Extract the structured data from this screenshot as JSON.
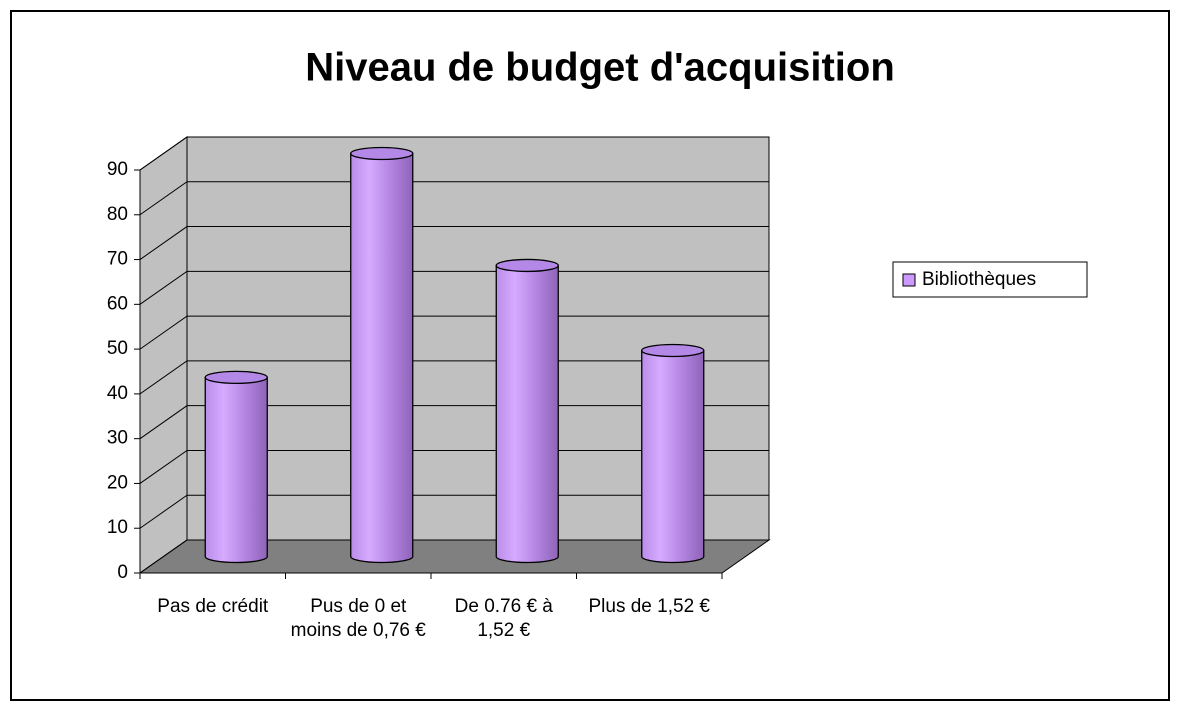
{
  "chart_data": {
    "type": "bar",
    "title": "Niveau de budget d'acquisition",
    "categories": [
      "Pas de crédit",
      "Pus de 0 et moins de 0,76 €",
      "De 0.76 € à 1,52 €",
      "Plus de 1,52 €"
    ],
    "series": [
      {
        "name": "Bibliothèques",
        "color": "#cc99ff",
        "values": [
          40,
          90,
          65,
          46
        ]
      }
    ],
    "ylim": [
      0,
      90
    ],
    "yticks": [
      0,
      10,
      20,
      30,
      40,
      50,
      60,
      70,
      80,
      90
    ],
    "grid": true,
    "legend": "right"
  }
}
